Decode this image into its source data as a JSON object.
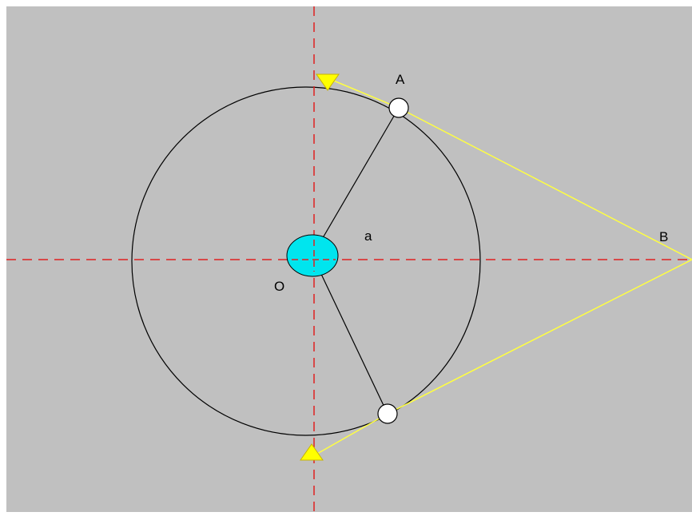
{
  "labels": [
    "A",
    "B",
    "O",
    "a"
  ]
}
